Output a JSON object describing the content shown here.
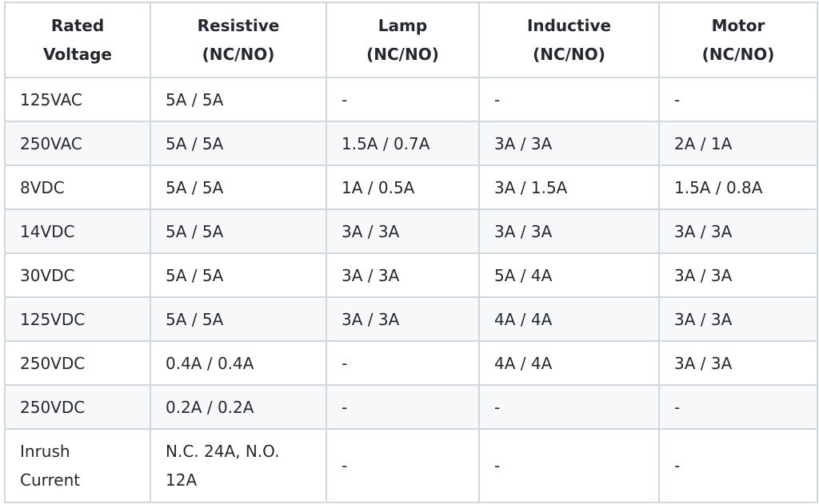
{
  "table": {
    "headers": [
      "Rated Voltage",
      "Resistive (NC/NO)",
      "Lamp (NC/NO)",
      "Inductive (NC/NO)",
      "Motor (NC/NO)"
    ],
    "rows": [
      [
        "125VAC",
        "5A / 5A",
        "-",
        "-",
        "-"
      ],
      [
        "250VAC",
        "5A / 5A",
        "1.5A / 0.7A",
        "3A / 3A",
        "2A / 1A"
      ],
      [
        "8VDC",
        "5A / 5A",
        "1A / 0.5A",
        "3A / 1.5A",
        "1.5A / 0.8A"
      ],
      [
        "14VDC",
        "5A / 5A",
        "3A / 3A",
        "3A / 3A",
        "3A / 3A"
      ],
      [
        "30VDC",
        "5A / 5A",
        "3A / 3A",
        "5A / 4A",
        "3A / 3A"
      ],
      [
        "125VDC",
        "5A / 5A",
        "3A / 3A",
        "4A / 4A",
        "3A / 3A"
      ],
      [
        "250VDC",
        "0.4A / 0.4A",
        "-",
        "4A / 4A",
        "3A / 3A"
      ],
      [
        "250VDC",
        "0.2A / 0.2A",
        "-",
        "-",
        "-"
      ],
      [
        "Inrush Current",
        "N.C. 24A, N.O. 12A",
        "-",
        "-",
        "-"
      ]
    ]
  }
}
